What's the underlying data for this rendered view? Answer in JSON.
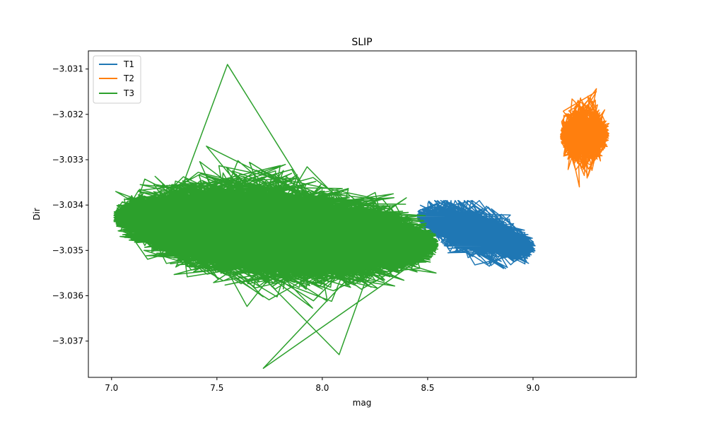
{
  "chart_data": {
    "type": "line",
    "title": "SLIP",
    "xlabel": "mag",
    "ylabel": "Dir",
    "xlim": [
      6.89,
      9.49
    ],
    "ylim": [
      -3.0378,
      -3.0306
    ],
    "x_ticks": [
      7.0,
      7.5,
      8.0,
      8.5,
      9.0
    ],
    "x_tick_labels": [
      "7.0",
      "7.5",
      "8.0",
      "8.5",
      "9.0"
    ],
    "y_ticks": [
      -3.031,
      -3.032,
      -3.033,
      -3.034,
      -3.035,
      -3.036,
      -3.037
    ],
    "y_tick_labels": [
      "−3.031",
      "−3.032",
      "−3.033",
      "−3.034",
      "−3.035",
      "−3.036",
      "−3.037"
    ],
    "grid": false,
    "legend_position": "top-left",
    "series": [
      {
        "name": "T1",
        "color": "#1f77b4",
        "x_range": [
          8.45,
          9.01
        ],
        "y_range": [
          -3.0354,
          -3.0339
        ],
        "x": [
          8.46,
          8.55,
          8.62,
          8.7,
          8.78,
          8.85,
          8.92,
          8.97,
          9.01
        ],
        "y": [
          -3.0342,
          -3.0343,
          -3.0344,
          -3.0345,
          -3.0346,
          -3.0347,
          -3.0349,
          -3.0351,
          -3.0349
        ]
      },
      {
        "name": "T2",
        "color": "#ff7f0e",
        "x_range": [
          9.13,
          9.36
        ],
        "y_range": [
          -3.0337,
          -3.0314
        ],
        "x": [
          9.14,
          9.18,
          9.22,
          9.26,
          9.3,
          9.34,
          9.36,
          9.28,
          9.22
        ],
        "y": [
          -3.0325,
          -3.0322,
          -3.0318,
          -3.0316,
          -3.0315,
          -3.0319,
          -3.0322,
          -3.033,
          -3.0336
        ]
      },
      {
        "name": "T3",
        "color": "#2ca02c",
        "x_range": [
          7.01,
          8.55
        ],
        "y_range": [
          -3.0376,
          -3.0309
        ],
        "x": [
          7.02,
          7.15,
          7.3,
          7.45,
          7.55,
          7.72,
          7.9,
          8.08,
          8.25,
          8.45,
          8.54
        ],
        "y": [
          -3.0337,
          -3.0343,
          -3.0338,
          -3.0327,
          -3.0309,
          -3.0376,
          -3.0352,
          -3.0373,
          -3.035,
          -3.0352,
          -3.0355
        ]
      }
    ]
  }
}
